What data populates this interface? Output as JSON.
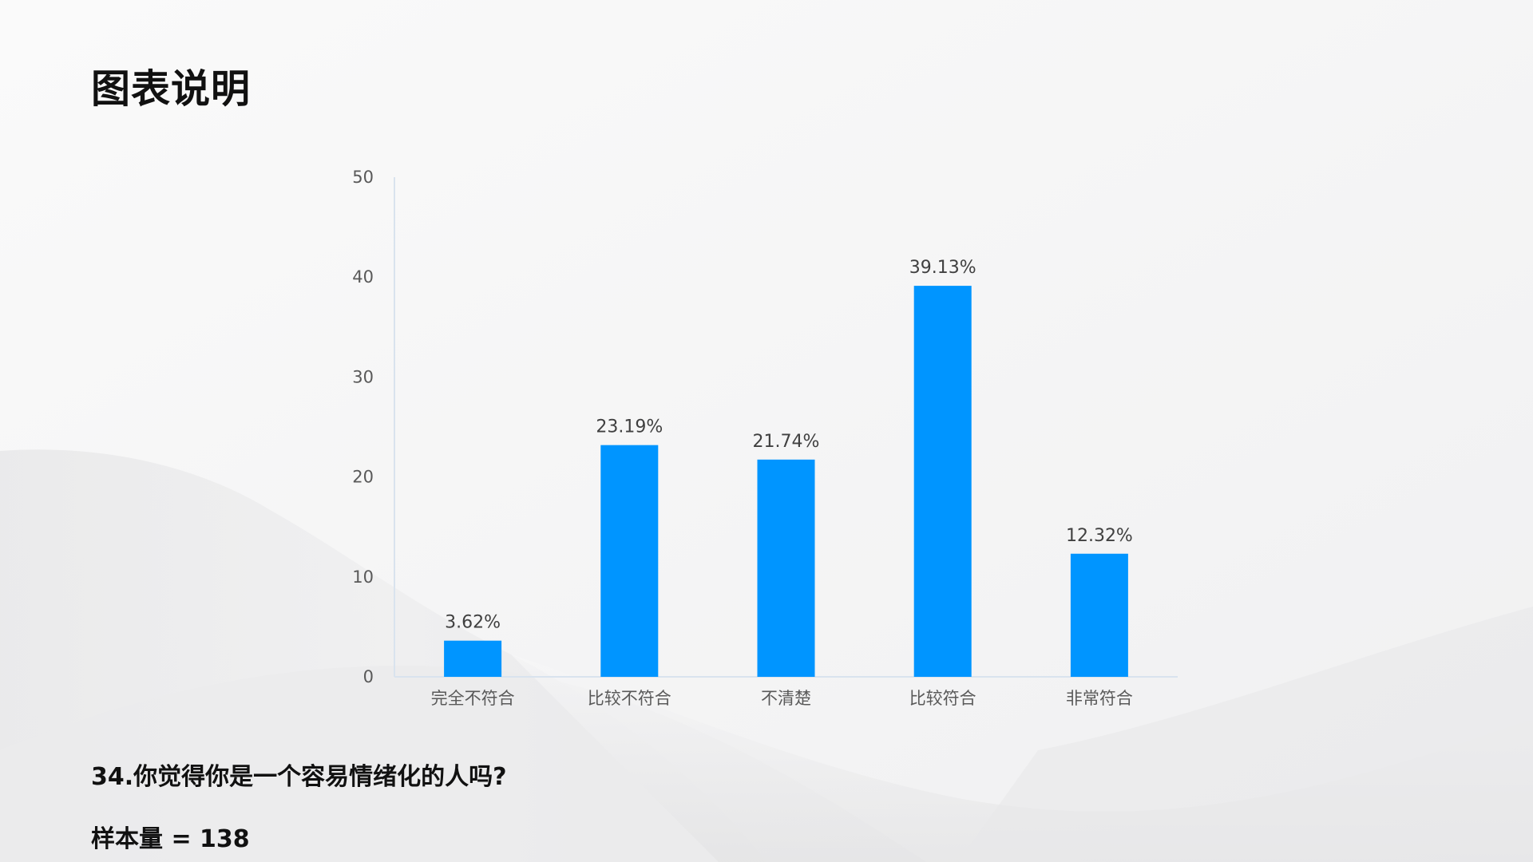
{
  "page": {
    "title": "图表说明",
    "question": "34.你觉得你是一个容易情绪化的人吗?",
    "sample_size": "样本量 = 138"
  },
  "colors": {
    "bar": "#0095ff",
    "axis": "#d9e3ee",
    "background": "#f5f5f6"
  },
  "chart_data": {
    "type": "bar",
    "categories": [
      "完全不符合",
      "比较不符合",
      "不清楚",
      "比较符合",
      "非常符合"
    ],
    "values": [
      3.62,
      23.19,
      21.74,
      39.13,
      12.32
    ],
    "data_labels": [
      "3.62%",
      "23.19%",
      "21.74%",
      "39.13%",
      "12.32%"
    ],
    "yticks": [
      0,
      10,
      20,
      30,
      40,
      50
    ],
    "ylim": [
      0,
      50
    ],
    "title": "",
    "xlabel": "",
    "ylabel": "",
    "grid": false,
    "legend": "none"
  }
}
